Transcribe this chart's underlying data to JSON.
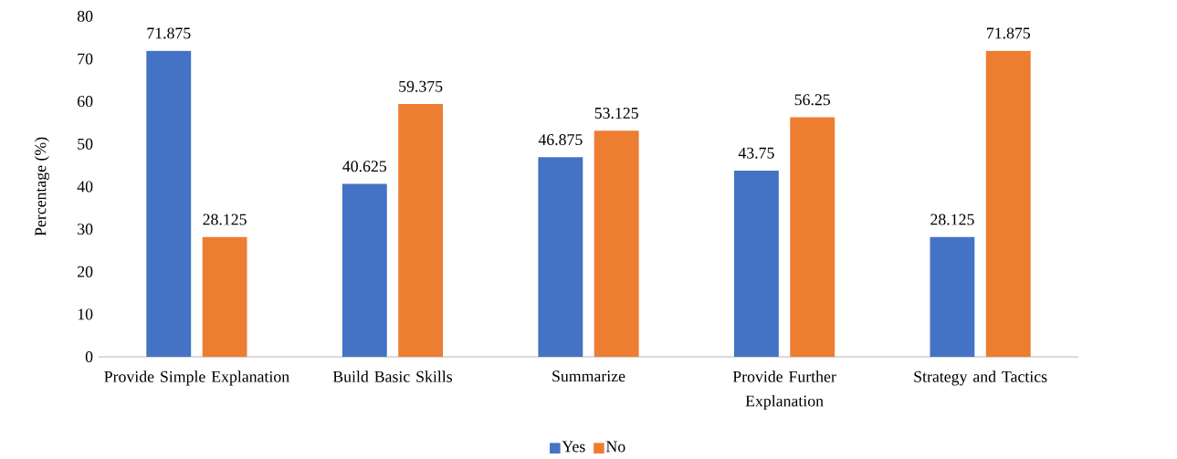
{
  "chart_data": {
    "type": "bar",
    "ylabel": "Percentage (%)",
    "categories": [
      "Provide Simple Explanation",
      "Build Basic Skills",
      "Summarize",
      "Provide Further Explanation",
      "Strategy and Tactics"
    ],
    "series": [
      {
        "name": "Yes",
        "color": "#4472c4",
        "values": [
          71.875,
          40.625,
          46.875,
          43.75,
          28.125
        ]
      },
      {
        "name": "No",
        "color": "#ed7d31",
        "values": [
          28.125,
          59.375,
          53.125,
          56.25,
          71.875
        ]
      }
    ],
    "ylim": [
      0,
      80
    ],
    "yticks": [
      0,
      10,
      20,
      30,
      40,
      50,
      60,
      70,
      80
    ],
    "data_labels": true,
    "legend": "bottom"
  }
}
